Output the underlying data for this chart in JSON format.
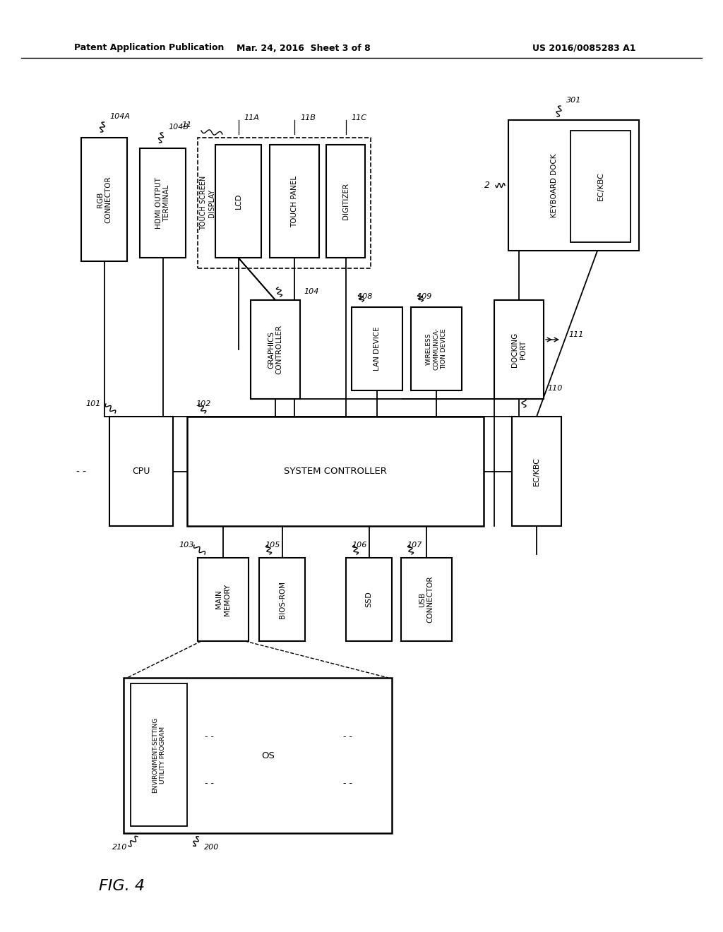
{
  "title_left": "Patent Application Publication",
  "title_center": "Mar. 24, 2016  Sheet 3 of 8",
  "title_right": "US 2016/0085283 A1",
  "fig_label": "FIG. 4",
  "bg": "#ffffff"
}
